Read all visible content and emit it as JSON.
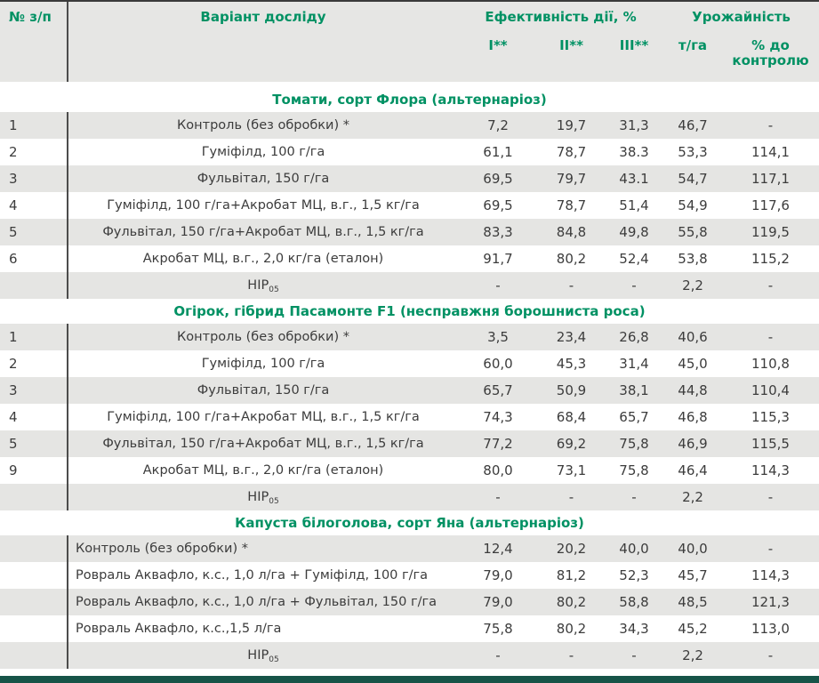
{
  "colors": {
    "accent_green": "#009163",
    "row_shade": "#e5e5e3",
    "header_bg": "#e6e6e4",
    "divider": "#4c4c4c",
    "top_border": "#3a3a3a",
    "bottom_bar": "#175448",
    "text": "#3c3c3c"
  },
  "header": {
    "col_num": "№ з/п",
    "col_variant": "Варіант досліду",
    "group_effect": "Ефективність дії, %",
    "group_yield": "Урожайність",
    "sub_i": "I**",
    "sub_ii": "II**",
    "sub_iii": "III**",
    "sub_t_ha": "т/га",
    "sub_pct": "% до контролю"
  },
  "sections": [
    {
      "title": "Томати, сорт Флора (альтернаріоз)",
      "variant_align": "center",
      "rows": [
        {
          "num": "1",
          "variant": "Контроль (без обробки) *",
          "i": "7,2",
          "ii": "19,7",
          "iii": "31,3",
          "t_ha": "46,7",
          "pct": "-"
        },
        {
          "num": "2",
          "variant": "Гуміфілд, 100 г/га",
          "i": "61,1",
          "ii": "78,7",
          "iii": "38.3",
          "t_ha": "53,3",
          "pct": "114,1"
        },
        {
          "num": "3",
          "variant": "Фульвітал, 150 г/га",
          "i": "69,5",
          "ii": "79,7",
          "iii": "43.1",
          "t_ha": "54,7",
          "pct": "117,1"
        },
        {
          "num": "4",
          "variant": "Гуміфілд, 100 г/га+Акробат МЦ, в.г., 1,5 кг/га",
          "i": "69,5",
          "ii": "78,7",
          "iii": "51,4",
          "t_ha": "54,9",
          "pct": "117,6"
        },
        {
          "num": "5",
          "variant": "Фульвітал, 150 г/га+Акробат МЦ, в.г., 1,5 кг/га",
          "i": "83,3",
          "ii": "84,8",
          "iii": "49,8",
          "t_ha": "55,8",
          "pct": "119,5"
        },
        {
          "num": "6",
          "variant": "Акробат МЦ, в.г., 2,0 кг/га (еталон)",
          "i": "91,7",
          "ii": "80,2",
          "iii": "52,4",
          "t_ha": "53,8",
          "pct": "115,2"
        },
        {
          "num": "",
          "variant": "НІР",
          "variant_sub": "05",
          "i": "-",
          "ii": "-",
          "iii": "-",
          "t_ha": "2,2",
          "pct": "-"
        }
      ]
    },
    {
      "title": "Огірок, гібрид Пасамонте F1 (несправжня борошниста роса)",
      "variant_align": "center",
      "rows": [
        {
          "num": "1",
          "variant": "Контроль (без обробки) *",
          "i": "3,5",
          "ii": "23,4",
          "iii": "26,8",
          "t_ha": "40,6",
          "pct": "-"
        },
        {
          "num": "2",
          "variant": "Гуміфілд, 100 г/га",
          "i": "60,0",
          "ii": "45,3",
          "iii": "31,4",
          "t_ha": "45,0",
          "pct": "110,8"
        },
        {
          "num": "3",
          "variant": "Фульвітал, 150 г/га",
          "i": "65,7",
          "ii": "50,9",
          "iii": "38,1",
          "t_ha": "44,8",
          "pct": "110,4"
        },
        {
          "num": "4",
          "variant": "Гуміфілд, 100 г/га+Акробат МЦ, в.г., 1,5 кг/га",
          "i": "74,3",
          "ii": "68,4",
          "iii": "65,7",
          "t_ha": "46,8",
          "pct": "115,3"
        },
        {
          "num": "5",
          "variant": "Фульвітал, 150 г/га+Акробат МЦ, в.г., 1,5 кг/га",
          "i": "77,2",
          "ii": "69,2",
          "iii": "75,8",
          "t_ha": "46,9",
          "pct": "115,5"
        },
        {
          "num": "9",
          "variant": "Акробат МЦ, в.г., 2,0 кг/га (еталон)",
          "i": "80,0",
          "ii": "73,1",
          "iii": "75,8",
          "t_ha": "46,4",
          "pct": "114,3"
        },
        {
          "num": "",
          "variant": "НІР",
          "variant_sub": "05",
          "i": "-",
          "ii": "-",
          "iii": "-",
          "t_ha": "2,2",
          "pct": "-"
        }
      ]
    },
    {
      "title": "Капуста білоголова, сорт Яна (альтернаріоз)",
      "variant_align": "left",
      "rows": [
        {
          "num": "",
          "variant": "Контроль (без обробки) *",
          "i": "12,4",
          "ii": "20,2",
          "iii": "40,0",
          "t_ha": "40,0",
          "pct": "-"
        },
        {
          "num": "",
          "variant": "Ровраль Аквафло, к.с., 1,0 л/га + Гуміфілд, 100 г/га",
          "i": "79,0",
          "ii": "81,2",
          "iii": "52,3",
          "t_ha": "45,7",
          "pct": "114,3"
        },
        {
          "num": "",
          "variant": "Ровраль Аквафло, к.с., 1,0 л/га + Фульвітал, 150 г/га",
          "i": "79,0",
          "ii": "80,2",
          "iii": "58,8",
          "t_ha": "48,5",
          "pct": "121,3"
        },
        {
          "num": "",
          "variant": "Ровраль Аквафло, к.с.,1,5 л/га",
          "i": "75,8",
          "ii": "80,2",
          "iii": "34,3",
          "t_ha": "45,2",
          "pct": "113,0"
        },
        {
          "num": "",
          "variant": "НІР",
          "variant_sub": "05",
          "i": "-",
          "ii": "-",
          "iii": "-",
          "t_ha": "2,2",
          "pct": "-"
        }
      ]
    }
  ]
}
